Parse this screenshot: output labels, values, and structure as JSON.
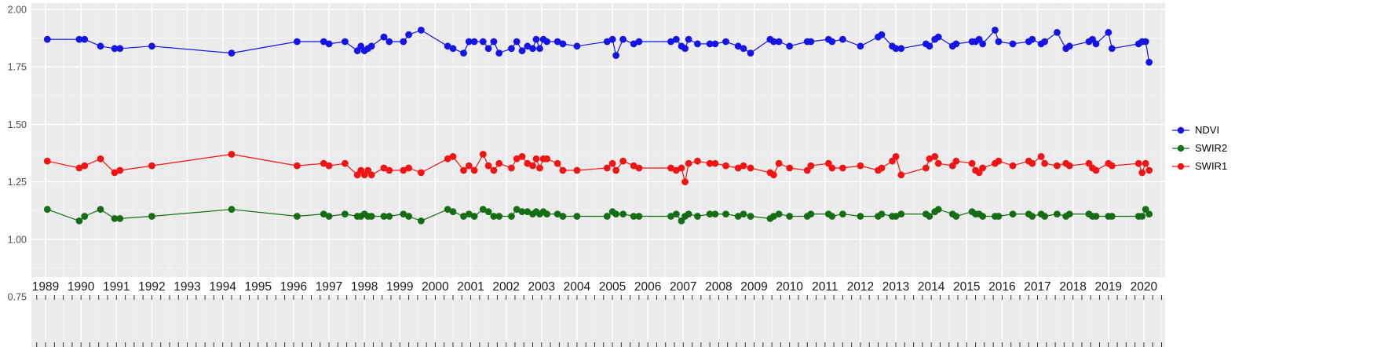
{
  "chart_data": {
    "type": "line",
    "title": "",
    "xlabel": "",
    "ylabel": "",
    "grid": true,
    "legend_position": "right",
    "panel_background": "#EBEBEB",
    "gridline_color": "#FFFFFF",
    "tick_color": "#333333",
    "axis_text_color": "#4D4D4D",
    "x_label_color": "#1A1A1A",
    "xlim": [
      1988.6,
      2020.6
    ],
    "ylim": [
      0.75,
      2.0
    ],
    "x_ticks": [
      1989,
      1990,
      1991,
      1992,
      1993,
      1994,
      1995,
      1996,
      1997,
      1998,
      1999,
      2000,
      2001,
      2002,
      2003,
      2004,
      2005,
      2006,
      2007,
      2008,
      2009,
      2010,
      2011,
      2012,
      2013,
      2014,
      2015,
      2016,
      2017,
      2018,
      2019,
      2020
    ],
    "y_ticks": [
      0.75,
      1.0,
      1.25,
      1.5,
      1.75,
      2.0
    ],
    "y_tick_labels": [
      "0.75",
      "1.00",
      "1.25",
      "1.50",
      "1.75",
      "2.00"
    ],
    "x": [
      1989.05,
      1989.95,
      1990.1,
      1990.55,
      1990.95,
      1991.1,
      1992.0,
      1994.25,
      1996.1,
      1996.85,
      1997.0,
      1997.45,
      1997.8,
      1997.9,
      1998.0,
      1998.1,
      1998.2,
      1998.55,
      1998.7,
      1999.1,
      1999.25,
      1999.6,
      2000.35,
      2000.5,
      2000.8,
      2000.95,
      2001.1,
      2001.35,
      2001.5,
      2001.65,
      2001.8,
      2002.15,
      2002.3,
      2002.45,
      2002.6,
      2002.75,
      2002.85,
      2002.95,
      2003.05,
      2003.15,
      2003.45,
      2003.6,
      2004.0,
      2004.85,
      2005.0,
      2005.1,
      2005.3,
      2005.6,
      2005.75,
      2006.65,
      2006.8,
      2006.95,
      2007.05,
      2007.15,
      2007.4,
      2007.75,
      2007.9,
      2008.2,
      2008.55,
      2008.7,
      2008.9,
      2009.45,
      2009.55,
      2009.7,
      2010.0,
      2010.5,
      2010.6,
      2011.1,
      2011.2,
      2011.5,
      2012.0,
      2012.5,
      2012.6,
      2012.9,
      2013.0,
      2013.15,
      2013.85,
      2013.95,
      2014.1,
      2014.2,
      2014.6,
      2014.7,
      2015.15,
      2015.25,
      2015.35,
      2015.45,
      2015.8,
      2015.9,
      2016.3,
      2016.75,
      2016.85,
      2017.1,
      2017.2,
      2017.55,
      2017.8,
      2017.9,
      2018.45,
      2018.55,
      2018.65,
      2019.0,
      2019.1,
      2019.85,
      2019.95,
      2020.05,
      2020.15
    ],
    "series": [
      {
        "name": "NDVI",
        "color": "#1414E6",
        "values": [
          1.87,
          1.87,
          1.87,
          1.84,
          1.83,
          1.83,
          1.84,
          1.81,
          1.86,
          1.86,
          1.85,
          1.86,
          1.82,
          1.84,
          1.82,
          1.83,
          1.84,
          1.88,
          1.86,
          1.86,
          1.89,
          1.91,
          1.84,
          1.83,
          1.81,
          1.86,
          1.86,
          1.86,
          1.83,
          1.86,
          1.81,
          1.83,
          1.86,
          1.82,
          1.84,
          1.83,
          1.87,
          1.83,
          1.87,
          1.86,
          1.86,
          1.85,
          1.84,
          1.86,
          1.87,
          1.8,
          1.87,
          1.85,
          1.86,
          1.86,
          1.87,
          1.84,
          1.83,
          1.87,
          1.85,
          1.85,
          1.85,
          1.86,
          1.84,
          1.83,
          1.81,
          1.87,
          1.86,
          1.86,
          1.84,
          1.86,
          1.86,
          1.87,
          1.86,
          1.87,
          1.84,
          1.88,
          1.89,
          1.84,
          1.83,
          1.83,
          1.85,
          1.84,
          1.87,
          1.88,
          1.84,
          1.85,
          1.86,
          1.86,
          1.87,
          1.85,
          1.91,
          1.86,
          1.85,
          1.86,
          1.87,
          1.85,
          1.86,
          1.9,
          1.83,
          1.84,
          1.86,
          1.87,
          1.85,
          1.9,
          1.83,
          1.85,
          1.86,
          1.86,
          1.77
        ]
      },
      {
        "name": "SWIR2",
        "color": "#156E15",
        "values": [
          1.13,
          1.08,
          1.1,
          1.13,
          1.09,
          1.09,
          1.1,
          1.13,
          1.1,
          1.11,
          1.1,
          1.11,
          1.1,
          1.1,
          1.11,
          1.1,
          1.1,
          1.1,
          1.1,
          1.11,
          1.1,
          1.08,
          1.13,
          1.12,
          1.1,
          1.11,
          1.1,
          1.13,
          1.12,
          1.1,
          1.1,
          1.1,
          1.13,
          1.12,
          1.12,
          1.11,
          1.12,
          1.11,
          1.12,
          1.11,
          1.11,
          1.1,
          1.1,
          1.1,
          1.12,
          1.11,
          1.11,
          1.1,
          1.1,
          1.1,
          1.11,
          1.08,
          1.1,
          1.11,
          1.1,
          1.11,
          1.11,
          1.11,
          1.1,
          1.11,
          1.1,
          1.09,
          1.1,
          1.11,
          1.1,
          1.1,
          1.11,
          1.11,
          1.1,
          1.11,
          1.1,
          1.1,
          1.11,
          1.1,
          1.1,
          1.11,
          1.11,
          1.1,
          1.12,
          1.13,
          1.11,
          1.1,
          1.12,
          1.11,
          1.11,
          1.1,
          1.1,
          1.1,
          1.11,
          1.11,
          1.1,
          1.11,
          1.1,
          1.11,
          1.1,
          1.11,
          1.11,
          1.1,
          1.1,
          1.1,
          1.1,
          1.1,
          1.1,
          1.13,
          1.11
        ]
      },
      {
        "name": "SWIR1",
        "color": "#F01414",
        "values": [
          1.34,
          1.31,
          1.32,
          1.35,
          1.29,
          1.3,
          1.32,
          1.37,
          1.32,
          1.33,
          1.32,
          1.33,
          1.28,
          1.3,
          1.28,
          1.3,
          1.28,
          1.31,
          1.3,
          1.3,
          1.31,
          1.29,
          1.35,
          1.36,
          1.3,
          1.32,
          1.3,
          1.37,
          1.32,
          1.3,
          1.33,
          1.31,
          1.35,
          1.36,
          1.33,
          1.32,
          1.35,
          1.31,
          1.35,
          1.35,
          1.33,
          1.3,
          1.3,
          1.31,
          1.33,
          1.3,
          1.34,
          1.32,
          1.31,
          1.31,
          1.3,
          1.31,
          1.25,
          1.33,
          1.34,
          1.33,
          1.33,
          1.32,
          1.31,
          1.32,
          1.31,
          1.29,
          1.28,
          1.33,
          1.31,
          1.3,
          1.32,
          1.33,
          1.31,
          1.31,
          1.32,
          1.3,
          1.31,
          1.34,
          1.36,
          1.28,
          1.31,
          1.35,
          1.36,
          1.33,
          1.32,
          1.34,
          1.33,
          1.3,
          1.29,
          1.31,
          1.33,
          1.34,
          1.32,
          1.34,
          1.33,
          1.36,
          1.33,
          1.32,
          1.33,
          1.32,
          1.33,
          1.31,
          1.3,
          1.33,
          1.32,
          1.33,
          1.29,
          1.33,
          1.3
        ]
      }
    ]
  }
}
